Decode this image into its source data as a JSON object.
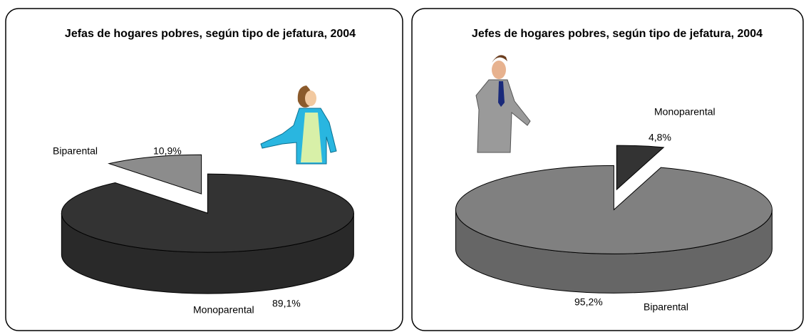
{
  "chart_data": [
    {
      "type": "pie",
      "title": "Jefas de hogares pobres, según tipo de jefatura, 2004",
      "categories": [
        "Monoparental",
        "Biparental"
      ],
      "values": [
        89.1,
        10.9
      ],
      "value_labels": [
        "89,1%",
        "10,9%"
      ],
      "colors": [
        "#333333",
        "#8c8c8c"
      ]
    },
    {
      "type": "pie",
      "title": "Jefes de hogares pobres, según tipo de jefatura, 2004",
      "categories": [
        "Monoparental",
        "Biparental"
      ],
      "values": [
        4.8,
        95.2
      ],
      "value_labels": [
        "4,8%",
        "95,2%"
      ],
      "colors": [
        "#333333",
        "#808080"
      ]
    }
  ]
}
